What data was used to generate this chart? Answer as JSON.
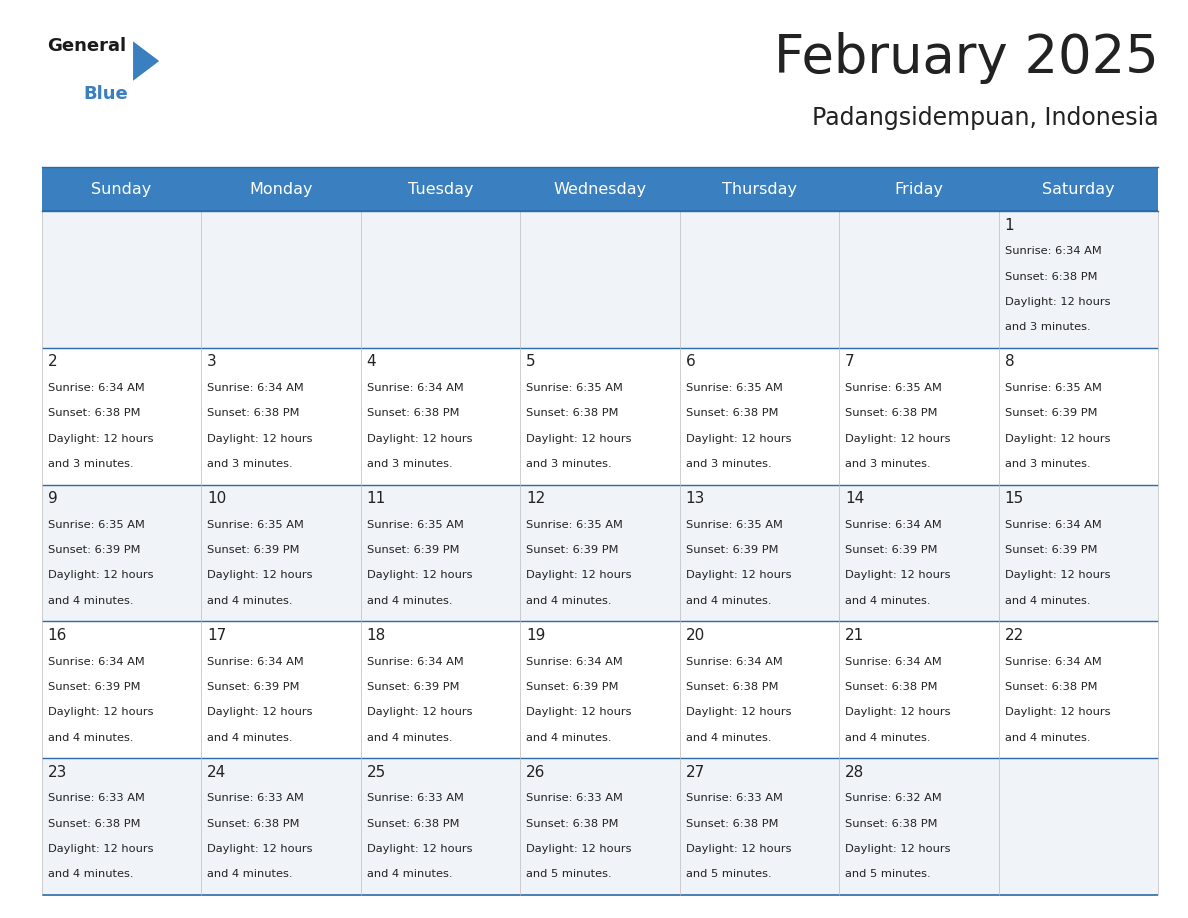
{
  "title": "February 2025",
  "subtitle": "Padangsidempuan, Indonesia",
  "header_bg": "#3a7fbf",
  "header_text_color": "#ffffff",
  "cell_bg_light": "#f0f4f8",
  "cell_bg_white": "#ffffff",
  "border_color_dark": "#2a6aaa",
  "border_color_light": "#bbbbbb",
  "text_color": "#222222",
  "day_names": [
    "Sunday",
    "Monday",
    "Tuesday",
    "Wednesday",
    "Thursday",
    "Friday",
    "Saturday"
  ],
  "days": [
    {
      "day": 1,
      "col": 6,
      "row": 0,
      "sunrise": "6:34 AM",
      "sunset": "6:38 PM",
      "daylight_h": "12 hours",
      "daylight_m": "and 3 minutes."
    },
    {
      "day": 2,
      "col": 0,
      "row": 1,
      "sunrise": "6:34 AM",
      "sunset": "6:38 PM",
      "daylight_h": "12 hours",
      "daylight_m": "and 3 minutes."
    },
    {
      "day": 3,
      "col": 1,
      "row": 1,
      "sunrise": "6:34 AM",
      "sunset": "6:38 PM",
      "daylight_h": "12 hours",
      "daylight_m": "and 3 minutes."
    },
    {
      "day": 4,
      "col": 2,
      "row": 1,
      "sunrise": "6:34 AM",
      "sunset": "6:38 PM",
      "daylight_h": "12 hours",
      "daylight_m": "and 3 minutes."
    },
    {
      "day": 5,
      "col": 3,
      "row": 1,
      "sunrise": "6:35 AM",
      "sunset": "6:38 PM",
      "daylight_h": "12 hours",
      "daylight_m": "and 3 minutes."
    },
    {
      "day": 6,
      "col": 4,
      "row": 1,
      "sunrise": "6:35 AM",
      "sunset": "6:38 PM",
      "daylight_h": "12 hours",
      "daylight_m": "and 3 minutes."
    },
    {
      "day": 7,
      "col": 5,
      "row": 1,
      "sunrise": "6:35 AM",
      "sunset": "6:38 PM",
      "daylight_h": "12 hours",
      "daylight_m": "and 3 minutes."
    },
    {
      "day": 8,
      "col": 6,
      "row": 1,
      "sunrise": "6:35 AM",
      "sunset": "6:39 PM",
      "daylight_h": "12 hours",
      "daylight_m": "and 3 minutes."
    },
    {
      "day": 9,
      "col": 0,
      "row": 2,
      "sunrise": "6:35 AM",
      "sunset": "6:39 PM",
      "daylight_h": "12 hours",
      "daylight_m": "and 4 minutes."
    },
    {
      "day": 10,
      "col": 1,
      "row": 2,
      "sunrise": "6:35 AM",
      "sunset": "6:39 PM",
      "daylight_h": "12 hours",
      "daylight_m": "and 4 minutes."
    },
    {
      "day": 11,
      "col": 2,
      "row": 2,
      "sunrise": "6:35 AM",
      "sunset": "6:39 PM",
      "daylight_h": "12 hours",
      "daylight_m": "and 4 minutes."
    },
    {
      "day": 12,
      "col": 3,
      "row": 2,
      "sunrise": "6:35 AM",
      "sunset": "6:39 PM",
      "daylight_h": "12 hours",
      "daylight_m": "and 4 minutes."
    },
    {
      "day": 13,
      "col": 4,
      "row": 2,
      "sunrise": "6:35 AM",
      "sunset": "6:39 PM",
      "daylight_h": "12 hours",
      "daylight_m": "and 4 minutes."
    },
    {
      "day": 14,
      "col": 5,
      "row": 2,
      "sunrise": "6:34 AM",
      "sunset": "6:39 PM",
      "daylight_h": "12 hours",
      "daylight_m": "and 4 minutes."
    },
    {
      "day": 15,
      "col": 6,
      "row": 2,
      "sunrise": "6:34 AM",
      "sunset": "6:39 PM",
      "daylight_h": "12 hours",
      "daylight_m": "and 4 minutes."
    },
    {
      "day": 16,
      "col": 0,
      "row": 3,
      "sunrise": "6:34 AM",
      "sunset": "6:39 PM",
      "daylight_h": "12 hours",
      "daylight_m": "and 4 minutes."
    },
    {
      "day": 17,
      "col": 1,
      "row": 3,
      "sunrise": "6:34 AM",
      "sunset": "6:39 PM",
      "daylight_h": "12 hours",
      "daylight_m": "and 4 minutes."
    },
    {
      "day": 18,
      "col": 2,
      "row": 3,
      "sunrise": "6:34 AM",
      "sunset": "6:39 PM",
      "daylight_h": "12 hours",
      "daylight_m": "and 4 minutes."
    },
    {
      "day": 19,
      "col": 3,
      "row": 3,
      "sunrise": "6:34 AM",
      "sunset": "6:39 PM",
      "daylight_h": "12 hours",
      "daylight_m": "and 4 minutes."
    },
    {
      "day": 20,
      "col": 4,
      "row": 3,
      "sunrise": "6:34 AM",
      "sunset": "6:38 PM",
      "daylight_h": "12 hours",
      "daylight_m": "and 4 minutes."
    },
    {
      "day": 21,
      "col": 5,
      "row": 3,
      "sunrise": "6:34 AM",
      "sunset": "6:38 PM",
      "daylight_h": "12 hours",
      "daylight_m": "and 4 minutes."
    },
    {
      "day": 22,
      "col": 6,
      "row": 3,
      "sunrise": "6:34 AM",
      "sunset": "6:38 PM",
      "daylight_h": "12 hours",
      "daylight_m": "and 4 minutes."
    },
    {
      "day": 23,
      "col": 0,
      "row": 4,
      "sunrise": "6:33 AM",
      "sunset": "6:38 PM",
      "daylight_h": "12 hours",
      "daylight_m": "and 4 minutes."
    },
    {
      "day": 24,
      "col": 1,
      "row": 4,
      "sunrise": "6:33 AM",
      "sunset": "6:38 PM",
      "daylight_h": "12 hours",
      "daylight_m": "and 4 minutes."
    },
    {
      "day": 25,
      "col": 2,
      "row": 4,
      "sunrise": "6:33 AM",
      "sunset": "6:38 PM",
      "daylight_h": "12 hours",
      "daylight_m": "and 4 minutes."
    },
    {
      "day": 26,
      "col": 3,
      "row": 4,
      "sunrise": "6:33 AM",
      "sunset": "6:38 PM",
      "daylight_h": "12 hours",
      "daylight_m": "and 5 minutes."
    },
    {
      "day": 27,
      "col": 4,
      "row": 4,
      "sunrise": "6:33 AM",
      "sunset": "6:38 PM",
      "daylight_h": "12 hours",
      "daylight_m": "and 5 minutes."
    },
    {
      "day": 28,
      "col": 5,
      "row": 4,
      "sunrise": "6:32 AM",
      "sunset": "6:38 PM",
      "daylight_h": "12 hours",
      "daylight_m": "and 5 minutes."
    }
  ],
  "num_rows": 5,
  "num_cols": 7,
  "fig_width": 11.88,
  "fig_height": 9.18,
  "title_fontsize": 38,
  "subtitle_fontsize": 17,
  "day_num_fontsize": 11,
  "cell_text_fontsize": 8.2,
  "header_fontsize": 11.5,
  "logo_general_fontsize": 13,
  "logo_blue_fontsize": 13
}
